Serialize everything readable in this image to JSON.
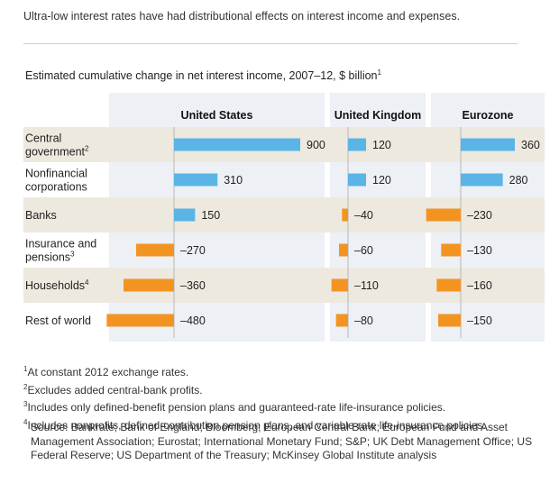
{
  "headline": "Ultra-low interest rates have had distributional effects on interest income and expenses.",
  "subtitle": "Estimated cumulative change in net interest income, 2007–12, $ billion",
  "subtitle_note": "1",
  "colors": {
    "positive": "#5ab4e5",
    "negative": "#f39422",
    "panel": "#edf0f5",
    "band": "#ede9df",
    "axis": "#b8b8b8"
  },
  "chart_data": {
    "type": "bar",
    "orientation": "horizontal",
    "title": "Estimated cumulative change in net interest income, 2007–12, $ billion",
    "categories": [
      {
        "lines": [
          "Central",
          "government"
        ],
        "note": "2"
      },
      {
        "lines": [
          "Nonfinancial",
          "corporations"
        ],
        "note": ""
      },
      {
        "lines": [
          "Banks"
        ],
        "note": ""
      },
      {
        "lines": [
          "Insurance and",
          "pensions"
        ],
        "note": "3"
      },
      {
        "lines": [
          "Households"
        ],
        "note": "4"
      },
      {
        "lines": [
          "Rest of world"
        ],
        "note": ""
      }
    ],
    "series": [
      {
        "name": "United States",
        "values": [
          900,
          310,
          150,
          -270,
          -360,
          -480
        ]
      },
      {
        "name": "United Kingdom",
        "values": [
          120,
          120,
          -40,
          -60,
          -110,
          -80
        ]
      },
      {
        "name": "Eurozone",
        "values": [
          360,
          280,
          -230,
          -130,
          -160,
          -150
        ]
      }
    ],
    "value_labels": [
      [
        "900",
        "310",
        "150",
        "–270",
        "–360",
        "–480"
      ],
      [
        "120",
        "120",
        "–40",
        "–60",
        "–110",
        "–80"
      ],
      [
        "360",
        "280",
        "–230",
        "–130",
        "–160",
        "–150"
      ]
    ]
  },
  "footnotes": [
    {
      "mark": "1",
      "text": "At constant 2012 exchange rates."
    },
    {
      "mark": "2",
      "text": "Excludes added central-bank profits."
    },
    {
      "mark": "3",
      "text": "Includes only defined-benefit pension plans and guaranteed-rate life-insurance policies."
    },
    {
      "mark": "4",
      "text": "Includes nonprofits, defined-contribution pension plans, and variable-rate life-insurance policies."
    }
  ],
  "source": "Source: Bankrate; Bank of England; Bloomberg; European Central Bank; European Fund and Asset Management Association; Eurostat; International Monetary Fund; S&P; UK Debt Management Office; US Federal Reserve; US Department of the Treasury; McKinsey Global Institute analysis"
}
